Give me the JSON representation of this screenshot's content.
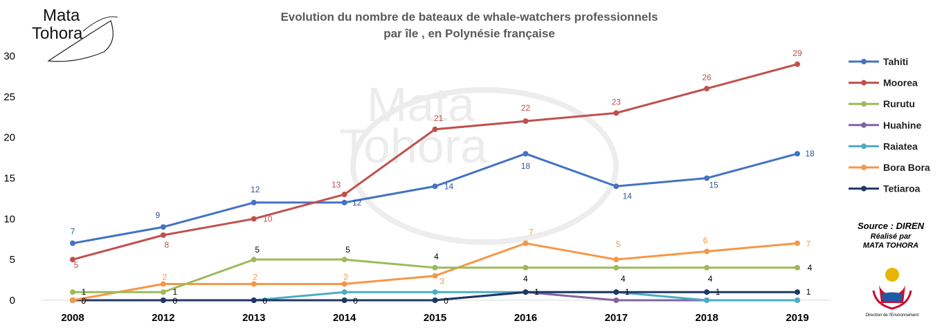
{
  "logo": {
    "line1": "Mata",
    "line2": "Tohora"
  },
  "source": {
    "line1": "Source : DIREN",
    "line2": "Réalisé par",
    "line3": "MATA TOHORA"
  },
  "emblem_caption": "Direction de l'Environnement",
  "chart_data": {
    "type": "line",
    "title_lines": [
      "Evolution du nombre de bateaux de whale-watchers professionnels",
      "par île , en Polynésie française"
    ],
    "categories": [
      "2008",
      "2012",
      "2013",
      "2014",
      "2015",
      "2016",
      "2017",
      "2018",
      "2019"
    ],
    "ylim": [
      0,
      30
    ],
    "yticks": [
      0,
      5,
      10,
      15,
      20,
      25,
      30
    ],
    "grid": false,
    "legend_position": "right",
    "series": [
      {
        "name": "Tahiti",
        "color": "#4472c4",
        "values": [
          7,
          9,
          12,
          12,
          14,
          18,
          14,
          15,
          18
        ],
        "label_color": "#2f5597"
      },
      {
        "name": "Moorea",
        "color": "#c0504d",
        "values": [
          5,
          8,
          10,
          13,
          21,
          22,
          23,
          26,
          29
        ],
        "label_color": "#c0504d"
      },
      {
        "name": "Rurutu",
        "color": "#9bbb59",
        "values": [
          1,
          1,
          5,
          5,
          4,
          4,
          4,
          4,
          4
        ],
        "label_color": "#000000"
      },
      {
        "name": "Huahine",
        "color": "#8064a2",
        "values": [
          0,
          0,
          0,
          0,
          0,
          1,
          0,
          0,
          0
        ],
        "label_color": "#000000"
      },
      {
        "name": "Raiatea",
        "color": "#4bacc6",
        "values": [
          0,
          0,
          0,
          1,
          1,
          1,
          1,
          0,
          0
        ],
        "label_color": "#000000"
      },
      {
        "name": "Bora Bora",
        "color": "#f79646",
        "values": [
          0,
          2,
          2,
          2,
          3,
          7,
          5,
          6,
          7
        ],
        "label_color": "#f79646"
      },
      {
        "name": "Tetiaroa",
        "color": "#1f3864",
        "values": [
          0,
          0,
          0,
          0,
          0,
          1,
          1,
          1,
          1
        ],
        "label_color": "#000000"
      }
    ],
    "data_labels": [
      {
        "series": "Tahiti",
        "values": [
          "7",
          "9",
          "12",
          "12",
          "14",
          "18",
          "14",
          "15",
          "18"
        ]
      },
      {
        "series": "Moorea",
        "values": [
          "5",
          "8",
          "10",
          "13",
          "21",
          "22",
          "23",
          "26",
          "29"
        ]
      },
      {
        "series": "Rurutu",
        "values": [
          "1",
          "1",
          "5",
          "5",
          "4",
          "4",
          "4",
          "4",
          "4"
        ]
      },
      {
        "series": "Bora Bora",
        "values": [
          "0",
          "2",
          "2",
          "2",
          "3",
          "7",
          "5",
          "6",
          "7"
        ]
      },
      {
        "series": "Tetiaroa",
        "values": [
          "0",
          "0",
          "0",
          "0",
          "0",
          "1",
          "1",
          "1",
          "1"
        ]
      }
    ]
  }
}
